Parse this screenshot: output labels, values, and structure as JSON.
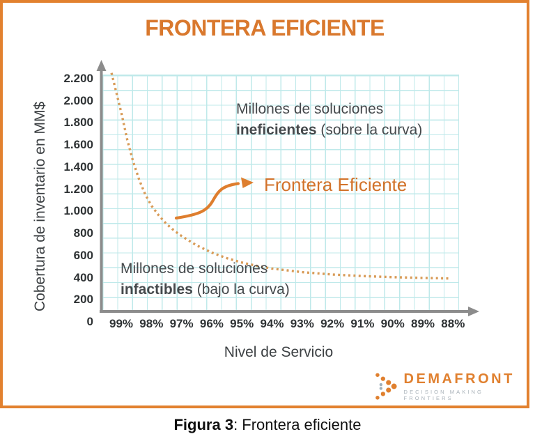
{
  "figure": {
    "title": "FRONTERA EFICIENTE",
    "caption": {
      "bold": "Figura 3",
      "rest": ": Frontera eficiente"
    }
  },
  "chart_data": {
    "type": "line",
    "title": "FRONTERA EFICIENTE",
    "xlabel": "Nivel de Servicio",
    "ylabel": "Cobertura de inventario en MM$",
    "x_tick_labels": [
      "99%",
      "98%",
      "97%",
      "96%",
      "95%",
      "94%",
      "93%",
      "92%",
      "91%",
      "90%",
      "89%",
      "88%"
    ],
    "y_tick_labels": [
      "2.200",
      "2.000",
      "1.800",
      "1.600",
      "1.400",
      "1.200",
      "1.000",
      "800",
      "600",
      "400",
      "200",
      "0"
    ],
    "x_axis_note": "service level decreases from left (99%) to right (88%)",
    "ylim": [
      0,
      2300
    ],
    "grid": true,
    "grid_style": "fine cyan graph paper",
    "legend_position": "none",
    "series": [
      {
        "name": "Frontera Eficiente",
        "style": "dotted",
        "color": "#D89B57",
        "x_service_level": [
          99.32,
          99.15,
          99.0,
          98.8,
          98.6,
          98.4,
          98.2,
          98.0,
          97.75,
          97.5,
          97.25,
          97.0,
          96.5,
          96.0,
          95.5,
          95.0,
          94.5,
          94.0,
          93.0,
          92.0,
          91.0,
          90.0,
          89.0,
          88.1
        ],
        "y_coverage_mm": [
          2250,
          2060,
          1895,
          1645,
          1445,
          1280,
          1150,
          1050,
          960,
          885,
          825,
          775,
          690,
          625,
          575,
          535,
          505,
          480,
          448,
          427,
          413,
          403,
          396,
          391
        ]
      }
    ],
    "annotations": [
      {
        "text": "Millones de soluciones ineficientes (sobre la curva)",
        "region": "above curve"
      },
      {
        "text": "Frontera Eficiente",
        "target": "curve",
        "style": "orange curved arrow pointing from label to curve"
      },
      {
        "text": "Millones de soluciones infactibles (bajo la curva)",
        "region": "below curve"
      }
    ]
  },
  "labels": {
    "inefficient": {
      "line1": "Millones de soluciones",
      "bold": "ineficientes",
      "rest": " (sobre la curva)"
    },
    "infeasible": {
      "line1": "Millones de soluciones",
      "bold": "infactibles",
      "rest": " (bajo la curva)"
    },
    "frontier": "Frontera Eficiente"
  },
  "logo": {
    "brand": "DEMAFRONT",
    "tagline": "DECISION MAKING FRONTIERS"
  },
  "colors": {
    "accent_orange": "#DC7D2F",
    "title_orange": "#D9782D",
    "curve_dot_orange": "#D89B57",
    "arrow_orange": "#DE7E2E",
    "grid_cyan": "#BFE9EA",
    "axis_gray": "#8C8C8C",
    "text_dark": "#45494C",
    "tagline_gray": "#A9B2B9"
  }
}
